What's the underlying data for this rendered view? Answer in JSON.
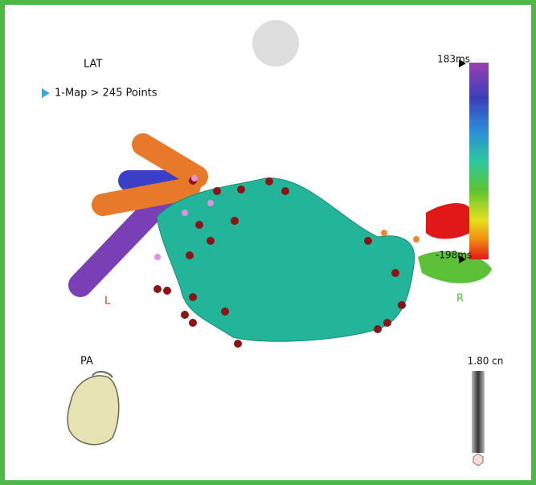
{
  "view": {
    "map_label": "LAT",
    "map_item": "1-Map > 245 Points",
    "orientation": "PA"
  },
  "color_scale": {
    "max_label": "183ms",
    "min_label": "-198ms"
  },
  "ruler": {
    "label": "1.80 cn"
  },
  "markers": {
    "left": "L",
    "right": "R"
  }
}
